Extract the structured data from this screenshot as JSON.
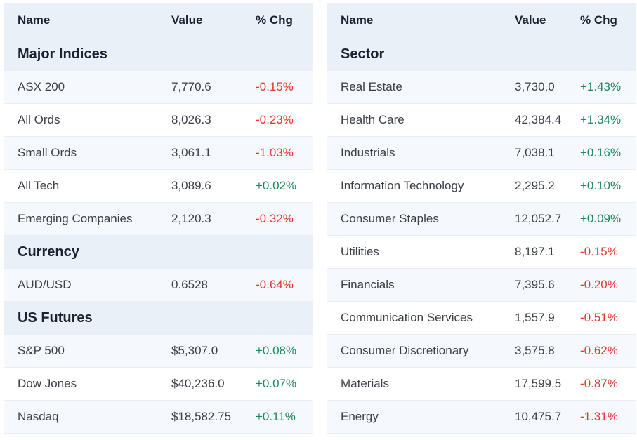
{
  "colors": {
    "positive": "#1a8a5a",
    "negative": "#e0392b",
    "header_bg": "#e9f0f8"
  },
  "left": {
    "columns": {
      "name": "Name",
      "value": "Value",
      "change": "% Chg"
    },
    "groups": [
      {
        "title": "Major Indices",
        "rows": [
          {
            "name": "ASX 200",
            "value": "7,770.6",
            "change": "-0.15%",
            "dir": "neg"
          },
          {
            "name": "All Ords",
            "value": "8,026.3",
            "change": "-0.23%",
            "dir": "neg"
          },
          {
            "name": "Small Ords",
            "value": "3,061.1",
            "change": "-1.03%",
            "dir": "neg"
          },
          {
            "name": "All Tech",
            "value": "3,089.6",
            "change": "+0.02%",
            "dir": "pos"
          },
          {
            "name": "Emerging Companies",
            "value": "2,120.3",
            "change": "-0.32%",
            "dir": "neg"
          }
        ]
      },
      {
        "title": "Currency",
        "rows": [
          {
            "name": "AUD/USD",
            "value": "0.6528",
            "change": "-0.64%",
            "dir": "neg"
          }
        ]
      },
      {
        "title": "US Futures",
        "rows": [
          {
            "name": "S&P 500",
            "value": "$5,307.0",
            "change": "+0.08%",
            "dir": "pos"
          },
          {
            "name": "Dow Jones",
            "value": "$40,236.0",
            "change": "+0.07%",
            "dir": "pos"
          },
          {
            "name": "Nasdaq",
            "value": "$18,582.75",
            "change": "+0.11%",
            "dir": "pos"
          }
        ]
      }
    ]
  },
  "right": {
    "columns": {
      "name": "Name",
      "value": "Value",
      "change": "% Chg"
    },
    "groups": [
      {
        "title": "Sector",
        "rows": [
          {
            "name": "Real Estate",
            "value": "3,730.0",
            "change": "+1.43%",
            "dir": "pos"
          },
          {
            "name": "Health Care",
            "value": "42,384.4",
            "change": "+1.34%",
            "dir": "pos"
          },
          {
            "name": "Industrials",
            "value": "7,038.1",
            "change": "+0.16%",
            "dir": "pos"
          },
          {
            "name": "Information Technology",
            "value": "2,295.2",
            "change": "+0.10%",
            "dir": "pos"
          },
          {
            "name": "Consumer Staples",
            "value": "12,052.7",
            "change": "+0.09%",
            "dir": "pos"
          },
          {
            "name": "Utilities",
            "value": "8,197.1",
            "change": "-0.15%",
            "dir": "neg"
          },
          {
            "name": "Financials",
            "value": "7,395.6",
            "change": "-0.20%",
            "dir": "neg"
          },
          {
            "name": "Communication Services",
            "value": "1,557.9",
            "change": "-0.51%",
            "dir": "neg"
          },
          {
            "name": "Consumer Discretionary",
            "value": "3,575.8",
            "change": "-0.62%",
            "dir": "neg"
          },
          {
            "name": "Materials",
            "value": "17,599.5",
            "change": "-0.87%",
            "dir": "neg"
          },
          {
            "name": "Energy",
            "value": "10,475.7",
            "change": "-1.31%",
            "dir": "neg"
          }
        ]
      }
    ]
  }
}
